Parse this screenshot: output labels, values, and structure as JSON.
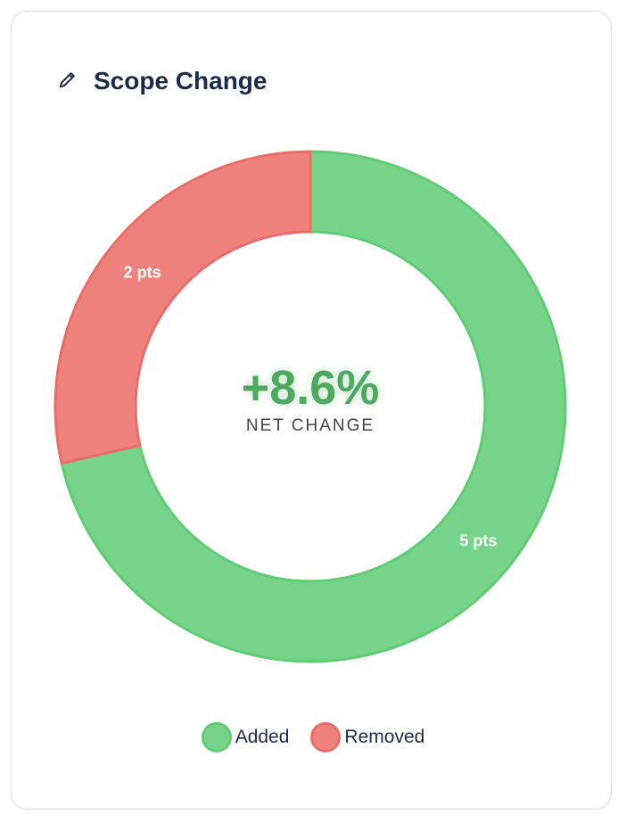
{
  "card": {
    "title": "Scope Change",
    "icon": "pencil-icon"
  },
  "center": {
    "value": "+8.6%",
    "label": "NET CHANGE"
  },
  "chart_data": {
    "type": "doughnut",
    "categories": [
      "Added",
      "Removed"
    ],
    "values": [
      5,
      2
    ],
    "data_labels": [
      "5 pts",
      "2 pts"
    ],
    "colors": [
      "#76d48a",
      "#ef827d"
    ],
    "border_colors": [
      "#5fcd73",
      "#ec6d68"
    ],
    "legend": "bottom"
  }
}
